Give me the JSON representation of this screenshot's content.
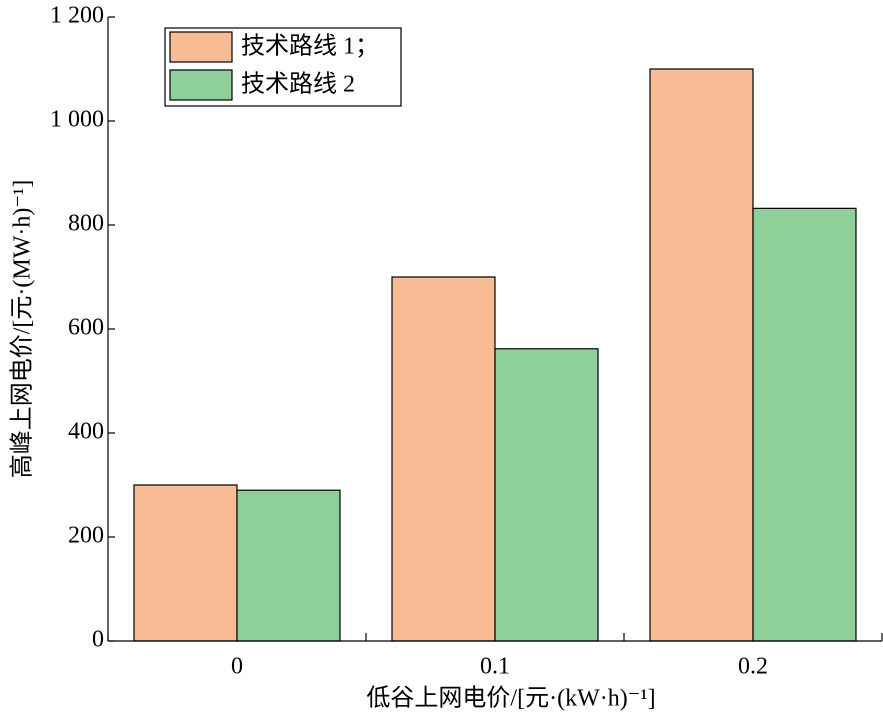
{
  "chart_data": {
    "type": "bar",
    "categories": [
      "0",
      "0.1",
      "0.2"
    ],
    "series": [
      {
        "name": "技术路线 1；",
        "color": "#f7bc94",
        "values": [
          300,
          700,
          1100
        ]
      },
      {
        "name": "技术路线 2",
        "color": "#8fcf9a",
        "values": [
          290,
          562,
          832
        ]
      }
    ],
    "x_label": "低谷上网电价/[元·(kW·h)⁻¹]",
    "y_label": "高峰上网电价/[元·(MW·h)⁻¹]",
    "ylim": [
      0,
      1200
    ],
    "yticks": [
      0,
      200,
      400,
      600,
      800,
      {
        "value": 1000,
        "label": "1 000"
      },
      {
        "value": 1200,
        "label": "1 200"
      }
    ],
    "legend": "upper left"
  }
}
